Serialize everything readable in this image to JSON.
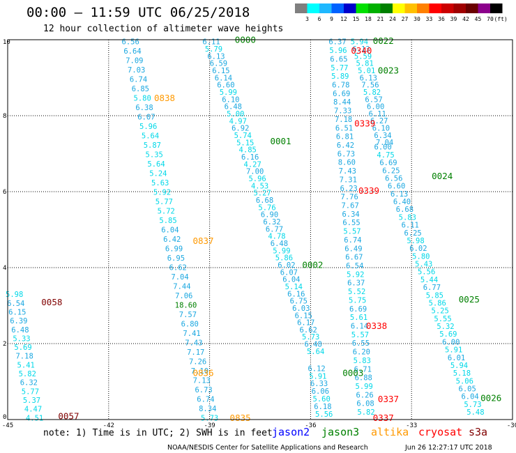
{
  "chart_data": {
    "type": "scatter",
    "title": "00:00 – 11:59 UTC 06/25/2018",
    "subtitle": "12 hour collection of altimeter wave heights",
    "xlim": [
      -45,
      -30
    ],
    "ylim": [
      0,
      10
    ],
    "x_ticks": [
      -45,
      -42,
      -39,
      -36,
      -33,
      -30
    ],
    "x_tick_labels": [
      "-45",
      "-42",
      "-39",
      "-36",
      "-33",
      "-30"
    ],
    "y_ticks": [
      0,
      2,
      4,
      6,
      8,
      10
    ],
    "y_tick_labels": [
      "0",
      "2",
      "4",
      "6",
      "8",
      "10"
    ],
    "grid": true,
    "colorbar": {
      "unit": "(ft)",
      "labels": [
        "3",
        "6",
        "9",
        "12",
        "15",
        "18",
        "21",
        "24",
        "27",
        "30",
        "33",
        "36",
        "39",
        "42",
        "45",
        "70"
      ],
      "colors": [
        "#7f7f7f",
        "#00ffff",
        "#1fb8ff",
        "#0062ff",
        "#0000cc",
        "#00e000",
        "#00b000",
        "#008000",
        "#ffff00",
        "#ffc000",
        "#ff8000",
        "#ff0000",
        "#cc0000",
        "#a00000",
        "#6a0000",
        "#8b008b",
        "#000000"
      ]
    },
    "passes": [
      {
        "label": "0057",
        "color": "#800000",
        "x": -43.5,
        "y": 0.05
      },
      {
        "label": "0058",
        "color": "#800000",
        "x": -44.0,
        "y": 3.05
      },
      {
        "label": "0838",
        "color": "#ff9900",
        "x": -40.65,
        "y": 8.42
      },
      {
        "label": "0837",
        "color": "#ff9900",
        "x": -39.5,
        "y": 4.66
      },
      {
        "label": "0836",
        "color": "#ff9900",
        "x": -39.5,
        "y": 1.18
      },
      {
        "label": "0835",
        "color": "#ff9900",
        "x": -38.4,
        "y": 0.0
      },
      {
        "label": "0000",
        "color": "#008000",
        "x": -38.25,
        "y": 9.95
      },
      {
        "label": "0001",
        "color": "#008000",
        "x": -37.2,
        "y": 7.28
      },
      {
        "label": "0002",
        "color": "#008000",
        "x": -36.25,
        "y": 4.03
      },
      {
        "label": "0003",
        "color": "#008000",
        "x": -35.05,
        "y": 1.18
      },
      {
        "label": "0022",
        "color": "#008000",
        "x": -34.15,
        "y": 9.93
      },
      {
        "label": "0023",
        "color": "#008000",
        "x": -34.0,
        "y": 9.15
      },
      {
        "label": "0024",
        "color": "#008000",
        "x": -32.4,
        "y": 6.37
      },
      {
        "label": "0025",
        "color": "#008000",
        "x": -31.6,
        "y": 3.12
      },
      {
        "label": "0026",
        "color": "#008000",
        "x": -30.95,
        "y": 0.52
      },
      {
        "label": "0340",
        "color": "#ff0000",
        "x": -34.8,
        "y": 9.67
      },
      {
        "label": "0339",
        "color": "#ff0000",
        "x": -34.7,
        "y": 7.75
      },
      {
        "label": "0339",
        "color": "#ff0000",
        "x": -34.58,
        "y": 5.98
      },
      {
        "label": "0338",
        "color": "#ff0000",
        "x": -34.35,
        "y": 2.42
      },
      {
        "label": "0337",
        "color": "#ff0000",
        "x": -34.0,
        "y": 0.5
      },
      {
        "label": "0337",
        "color": "#ff0000",
        "x": -34.15,
        "y": 0.0
      }
    ],
    "tracks": [
      {
        "x_top": -44.8,
        "y_top": 3.3,
        "x_bot": -44.2,
        "y_bot": 0.05,
        "values": [
          "5.98",
          "6.54",
          "6.15",
          "6.39",
          "6.48",
          "5.33",
          "5.69",
          "7.18",
          "5.41",
          "5.82",
          "6.32",
          "5.77",
          "5.37",
          "4.47",
          "4.51"
        ]
      },
      {
        "x_top": -41.35,
        "y_top": 9.95,
        "x_bot": -39.0,
        "y_bot": 0.05,
        "values": [
          "6.56",
          "6.64",
          "7.09",
          "7.03",
          "6.74",
          "6.85",
          "5.80",
          "6.38",
          "6.07",
          "5.96",
          "5.64",
          "5.87",
          "5.35",
          "5.64",
          "5.24",
          "5.63",
          "5.92",
          "5.77",
          "5.72",
          "5.85",
          "6.04",
          "6.42",
          "6.99",
          "6.95",
          "6.62",
          "7.04",
          "7.44",
          "7.06",
          "18.60",
          "7.57",
          "6.80",
          "7.41",
          "7.43",
          "7.17",
          "7.26",
          "7.10",
          "7.13",
          "6.73",
          "6.74",
          "8.34",
          "5.73"
        ]
      },
      {
        "x_top": -38.95,
        "y_top": 9.95,
        "x_bot": -35.85,
        "y_bot": 1.8,
        "values": [
          "6.11",
          "5.79",
          "6.13",
          "6.59",
          "6.15",
          "6.14",
          "6.60",
          "5.99",
          "6.10",
          "6.48",
          "5.00",
          "4.97",
          "6.92",
          "5.74",
          "5.15",
          "4.85",
          "6.16",
          "4.27",
          "7.00",
          "5.96",
          "4.53",
          "5.27",
          "6.68",
          "5.76",
          "6.90",
          "6.32",
          "6.77",
          "4.78",
          "6.48",
          "5.99",
          "5.86",
          "6.02",
          "6.07",
          "6.04",
          "5.14",
          "6.16",
          "6.75",
          "6.03",
          "6.15",
          "6.17",
          "6.62",
          "5.73",
          "6.48",
          "5.64"
        ]
      },
      {
        "x_top": -35.82,
        "y_top": 1.35,
        "x_bot": -35.6,
        "y_bot": 0.15,
        "values": [
          "6.12",
          "5.91",
          "6.33",
          "6.06",
          "5.60",
          "6.18",
          "5.56"
        ]
      },
      {
        "x_top": -35.2,
        "y_top": 9.95,
        "x_bot": -34.35,
        "y_bot": 0.2,
        "values": [
          "6.37",
          "5.96",
          "6.65",
          "5.77",
          "5.89",
          "6.78",
          "6.69",
          "8.44",
          "7.33",
          "7.18",
          "6.51",
          "6.81",
          "6.42",
          "6.73",
          "8.60",
          "7.43",
          "7.31",
          "6.23",
          "7.76",
          "7.67",
          "6.34",
          "6.55",
          "5.57",
          "6.74",
          "6.49",
          "6.67",
          "6.54",
          "5.92",
          "6.37",
          "5.52",
          "5.75",
          "6.69",
          "5.61",
          "6.14",
          "5.57",
          "6.55",
          "6.20",
          "5.83",
          "6.71",
          "6.88",
          "5.99",
          "6.26",
          "6.08",
          "5.82"
        ]
      },
      {
        "x_top": -34.55,
        "y_top": 9.95,
        "x_bot": -33.8,
        "y_bot": 7.3,
        "values": [
          "5.94",
          "6.13",
          "5.59",
          "5.81",
          "5.01",
          "6.13",
          "7.56",
          "5.82",
          "6.57",
          "6.00",
          "6.11",
          "6.27",
          "6.10",
          "6.34",
          "7.04"
        ]
      },
      {
        "x_top": -33.85,
        "y_top": 7.18,
        "x_bot": -31.1,
        "y_bot": 0.2,
        "values": [
          "6.00",
          "4.75",
          "6.69",
          "6.25",
          "6.56",
          "6.60",
          "6.13",
          "6.40",
          "6.68",
          "5.83",
          "6.11",
          "6.25",
          "5.98",
          "6.02",
          "5.80",
          "5.43",
          "5.56",
          "5.44",
          "6.77",
          "5.85",
          "5.86",
          "5.25",
          "5.55",
          "5.32",
          "5.69",
          "6.00",
          "5.91",
          "6.01",
          "5.94",
          "5.18",
          "5.06",
          "6.05",
          "6.04",
          "5.73",
          "5.48"
        ]
      }
    ],
    "legend": [
      {
        "label": "jason2",
        "color": "#0000ff"
      },
      {
        "label": "jason3",
        "color": "#008000"
      },
      {
        "label": "altika",
        "color": "#ff9900"
      },
      {
        "label": "cryosat",
        "color": "#ff0000"
      },
      {
        "label": "s3a",
        "color": "#800000"
      }
    ],
    "note": "note: 1) Time is in UTC; 2) SWH is in feet",
    "credit": "NOAA/NESDIS Center for Satellite Applications and Research",
    "timestamp": "Jun 26 12:27:17 UTC 2018"
  }
}
